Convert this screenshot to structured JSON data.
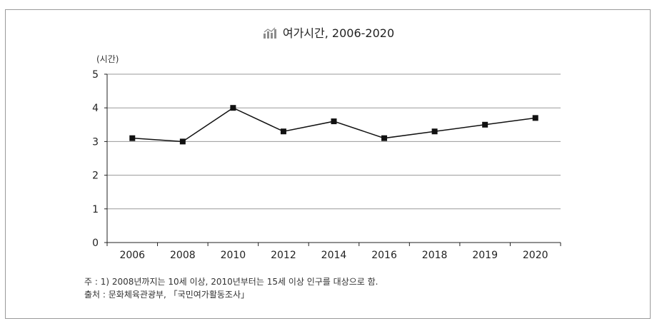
{
  "chart_data": {
    "type": "line",
    "title": "여가시간, 2006-2020",
    "ylabel": "(시간)",
    "xlabel": "",
    "categories": [
      "2006",
      "2008",
      "2010",
      "2012",
      "2014",
      "2016",
      "2018",
      "2019",
      "2020"
    ],
    "series": [
      {
        "values": [
          3.1,
          3.0,
          4.0,
          3.3,
          3.6,
          3.1,
          3.3,
          3.5,
          3.7
        ]
      }
    ],
    "ylim": [
      0,
      5
    ],
    "yticks": [
      "0",
      "1",
      "2",
      "3",
      "4",
      "5"
    ],
    "grid": true,
    "colors": {
      "line": "#111111",
      "grid": "#9a9a9a",
      "axis": "#222222",
      "title_icon": "#8c8c8c"
    }
  },
  "notes": {
    "note": "주   : 1) 2008년까지는 10세 이상, 2010년부터는 15세 이상 인구를 대상으로 함.",
    "source": "출처 : 문화체육관광부, 「국민여가활동조사」"
  }
}
